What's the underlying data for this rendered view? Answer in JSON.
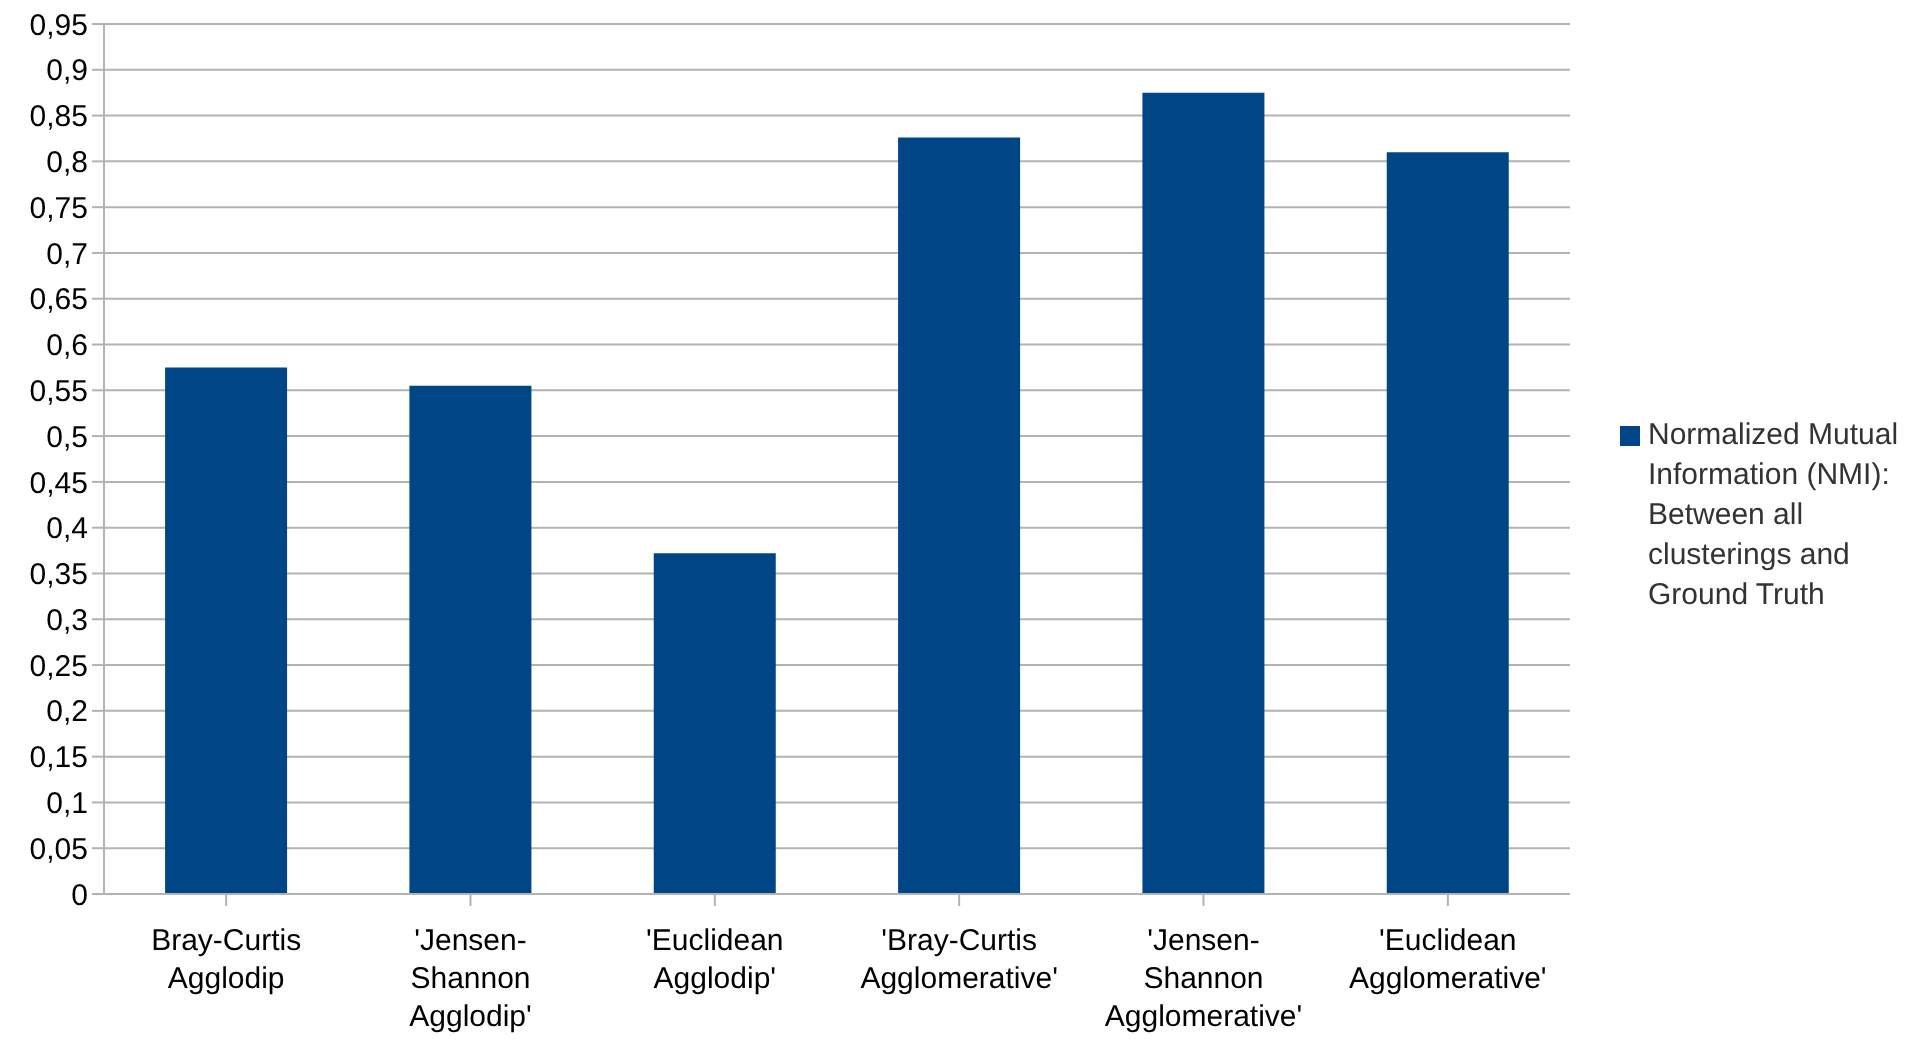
{
  "chart_data": {
    "type": "bar",
    "categories": [
      "Bray-Curtis Agglodip",
      "'Jensen-Shannon Agglodip'",
      "'Euclidean Agglodip'",
      "'Bray-Curtis Agglomerative'",
      "'Jensen-Shannon Agglomerative'",
      "'Euclidean Agglomerative'"
    ],
    "series": [
      {
        "name": "Normalized Mutual Information (NMI): Between all clusterings and Ground Truth",
        "color": "#004586",
        "values": [
          0.575,
          0.555,
          0.372,
          0.826,
          0.875,
          0.81
        ]
      }
    ],
    "ylim": [
      0,
      0.95
    ],
    "yticks": [
      0,
      {
        "value": 0.05,
        "label": "0,05"
      },
      {
        "value": 0.1,
        "label": "0,1"
      },
      {
        "value": 0.15,
        "label": "0,15"
      },
      {
        "value": 0.2,
        "label": "0,2"
      },
      {
        "value": 0.25,
        "label": "0,25"
      },
      {
        "value": 0.3,
        "label": "0,3"
      },
      {
        "value": 0.35,
        "label": "0,35"
      },
      {
        "value": 0.4,
        "label": "0,4"
      },
      {
        "value": 0.45,
        "label": "0,45"
      },
      {
        "value": 0.5,
        "label": "0,5"
      },
      {
        "value": 0.55,
        "label": "0,55"
      },
      {
        "value": 0.6,
        "label": "0,6"
      },
      {
        "value": 0.65,
        "label": "0,65"
      },
      {
        "value": 0.7,
        "label": "0,7"
      },
      {
        "value": 0.75,
        "label": "0,75"
      },
      {
        "value": 0.8,
        "label": "0,8"
      },
      {
        "value": 0.85,
        "label": "0,85"
      },
      {
        "value": 0.9,
        "label": "0,9"
      },
      {
        "value": 0.95,
        "label": "0,95"
      }
    ],
    "grid": "y",
    "legend": "right"
  }
}
